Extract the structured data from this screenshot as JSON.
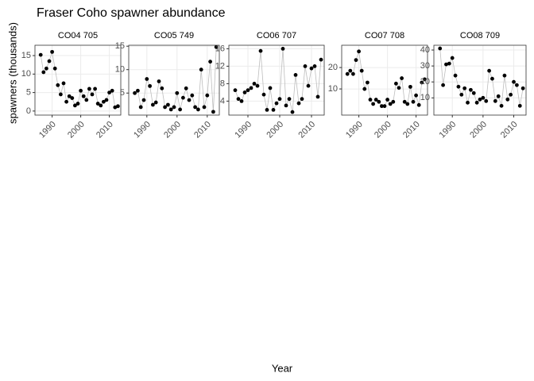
{
  "title": "Fraser Coho spawner abundance",
  "x_label": "Year",
  "y_label": "spawners (thousands)",
  "chart_data": [
    {
      "type": "scatter-line",
      "title": "CO04 705",
      "x": [
        1986,
        1987,
        1988,
        1989,
        1990,
        1991,
        1992,
        1993,
        1994,
        1995,
        1996,
        1997,
        1998,
        1999,
        2000,
        2001,
        2002,
        2003,
        2004,
        2005,
        2006,
        2007,
        2008,
        2009,
        2010,
        2011,
        2012,
        2013
      ],
      "values": [
        15.2,
        10.5,
        11.5,
        13.5,
        16,
        11.5,
        7,
        4.5,
        7.5,
        2.5,
        4,
        3.5,
        1.5,
        2,
        5.5,
        4,
        3,
        6,
        4.5,
        6,
        2,
        1.5,
        2.5,
        3,
        5,
        5.5,
        1,
        1.3
      ],
      "xlim": [
        1984,
        2014
      ],
      "xticks": [
        1990,
        2000,
        2010
      ],
      "ylim": [
        -1.1,
        17.8
      ],
      "yticks": [
        0,
        5,
        10,
        15
      ]
    },
    {
      "type": "scatter-line",
      "title": "CO05 749",
      "x": [
        1986,
        1987,
        1988,
        1989,
        1990,
        1991,
        1992,
        1993,
        1994,
        1995,
        1996,
        1997,
        1998,
        1999,
        2000,
        2001,
        2002,
        2003,
        2004,
        2005,
        2006,
        2007,
        2008,
        2009,
        2010,
        2011,
        2012,
        2013
      ],
      "values": [
        5,
        5.5,
        2,
        3.5,
        8,
        6.5,
        2.5,
        3,
        7.5,
        6,
        2,
        2.5,
        1.5,
        2,
        5,
        1.5,
        4,
        6,
        3.5,
        4.5,
        2,
        1.5,
        10,
        2,
        4.5,
        11.7,
        1,
        14.8
      ],
      "xlim": [
        1984,
        2014
      ],
      "xticks": [
        1990,
        2000,
        2010
      ],
      "ylim": [
        0.3,
        15.2
      ],
      "yticks": [
        5,
        10,
        15
      ]
    },
    {
      "type": "scatter-line",
      "title": "CO06 707",
      "x": [
        1986,
        1987,
        1988,
        1989,
        1990,
        1991,
        1992,
        1993,
        1994,
        1995,
        1996,
        1997,
        1998,
        1999,
        2000,
        2001,
        2002,
        2003,
        2004,
        2005,
        2006,
        2007,
        2008,
        2009,
        2010,
        2011,
        2012,
        2013
      ],
      "values": [
        6.5,
        4.5,
        4,
        6,
        6.5,
        7,
        8,
        7.5,
        15.5,
        5.5,
        2,
        7,
        2,
        3.5,
        4.5,
        16,
        3,
        4.5,
        1.5,
        10,
        3.5,
        4.5,
        12,
        7.5,
        11.5,
        12,
        5,
        13.5
      ],
      "xlim": [
        1984,
        2014
      ],
      "xticks": [
        1990,
        2000,
        2010
      ],
      "ylim": [
        0.8,
        16.8
      ],
      "yticks": [
        4,
        8,
        12,
        16
      ]
    },
    {
      "type": "scatter-line",
      "title": "CO07 708",
      "x": [
        1986,
        1987,
        1988,
        1989,
        1990,
        1991,
        1992,
        1993,
        1994,
        1995,
        1996,
        1997,
        1998,
        1999,
        2000,
        2001,
        2002,
        2003,
        2004,
        2005,
        2006,
        2007,
        2008,
        2009,
        2010,
        2011,
        2012,
        2013
      ],
      "values": [
        17,
        18.5,
        17,
        23.5,
        27.5,
        18.5,
        10,
        13,
        5,
        3,
        5,
        4,
        2,
        2,
        5,
        3,
        4,
        12.5,
        10.5,
        15,
        4,
        3,
        11,
        4,
        7,
        2.5,
        13,
        14.5
      ],
      "xlim": [
        1984,
        2014
      ],
      "xticks": [
        1990,
        2000,
        2010
      ],
      "ylim": [
        -2.2,
        30.4
      ],
      "yticks": [
        10,
        20
      ]
    },
    {
      "type": "scatter-line",
      "title": "CO08 709",
      "x": [
        1986,
        1987,
        1988,
        1989,
        1990,
        1991,
        1992,
        1993,
        1994,
        1995,
        1996,
        1997,
        1998,
        1999,
        2000,
        2001,
        2002,
        2003,
        2004,
        2005,
        2006,
        2007,
        2008,
        2009,
        2010,
        2011,
        2012,
        2013
      ],
      "values": [
        41,
        18,
        31,
        31.5,
        35,
        24,
        17,
        12,
        16,
        7,
        15,
        13,
        7,
        9,
        10,
        8,
        27,
        22,
        8,
        11,
        5,
        24,
        9,
        12,
        20,
        18,
        5,
        16
      ],
      "xlim": [
        1984,
        2014
      ],
      "xticks": [
        1990,
        2000,
        2010
      ],
      "ylim": [
        -0.8,
        43
      ],
      "yticks": [
        10,
        20,
        30,
        40
      ]
    }
  ]
}
